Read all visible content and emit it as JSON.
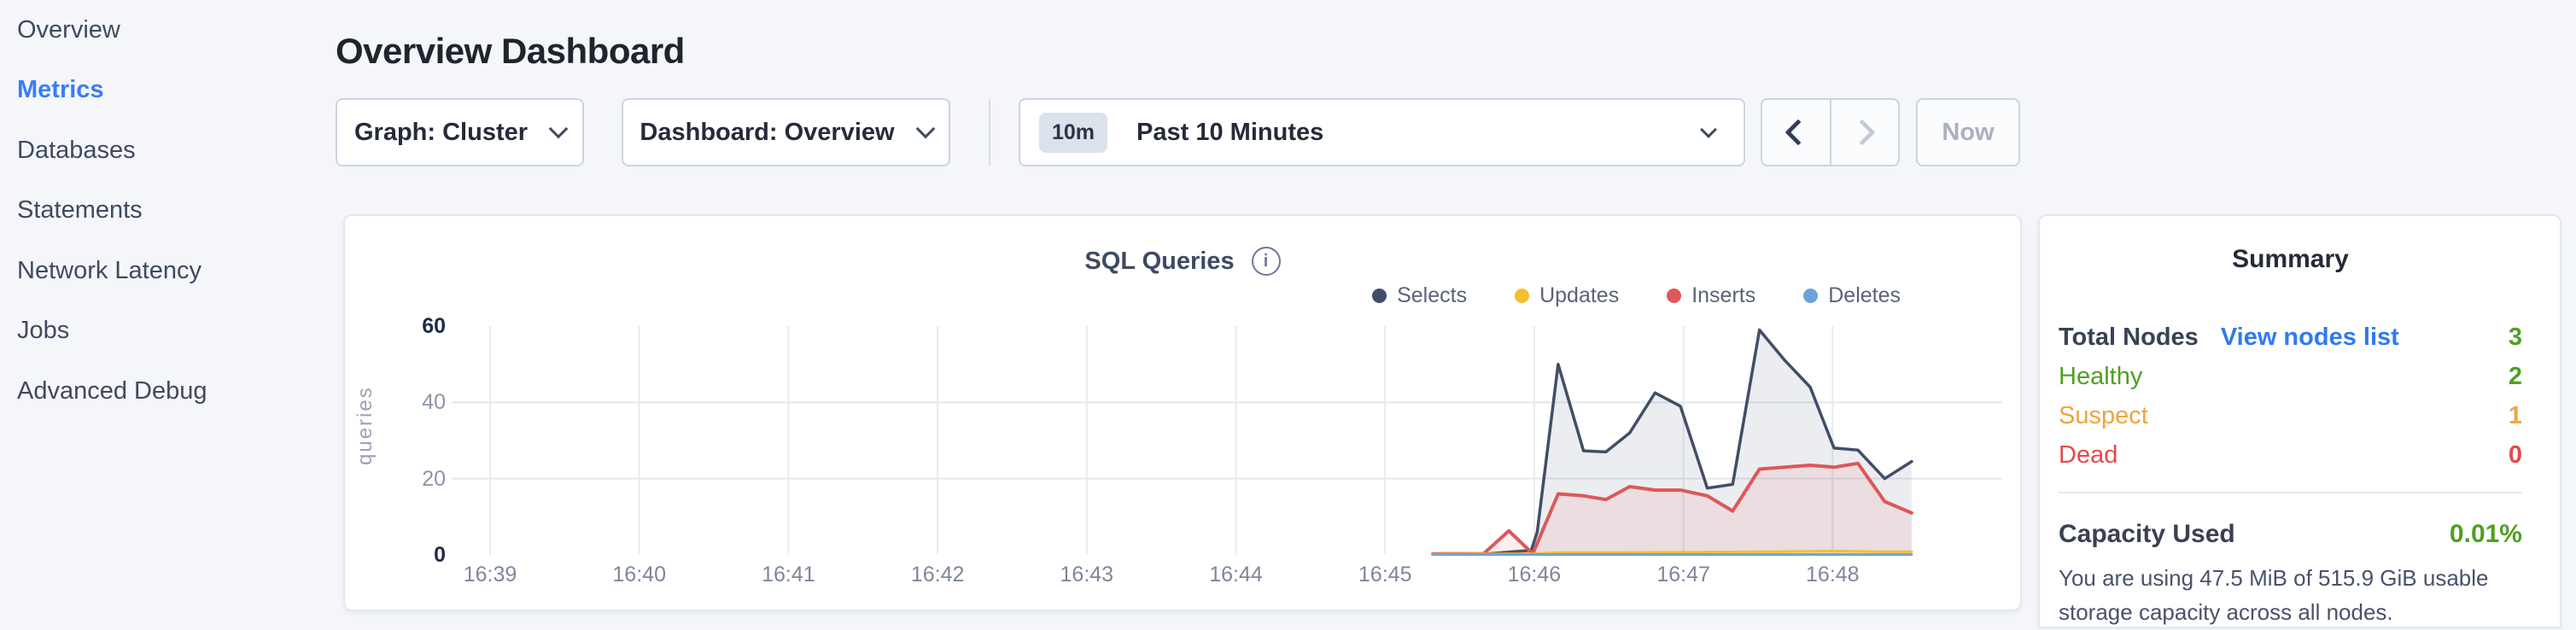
{
  "sidebar": {
    "items": [
      {
        "label": "Overview",
        "active": false
      },
      {
        "label": "Metrics",
        "active": true
      },
      {
        "label": "Databases",
        "active": false
      },
      {
        "label": "Statements",
        "active": false
      },
      {
        "label": "Network Latency",
        "active": false
      },
      {
        "label": "Jobs",
        "active": false
      },
      {
        "label": "Advanced Debug",
        "active": false
      }
    ],
    "active_color": "#3b7cf5"
  },
  "header": {
    "title": "Overview Dashboard"
  },
  "controls": {
    "graph_dropdown": {
      "label": "Graph: Cluster"
    },
    "dashboard_dropdown": {
      "label": "Dashboard: Overview"
    },
    "time_selector": {
      "badge": "10m",
      "label": "Past 10 Minutes"
    },
    "now_label": "Now"
  },
  "chart_data": {
    "type": "area",
    "title": "SQL Queries",
    "ylabel": "queries",
    "xlabel": "",
    "x_ticks": [
      "16:39",
      "16:40",
      "16:41",
      "16:42",
      "16:43",
      "16:44",
      "16:45",
      "16:46",
      "16:47",
      "16:48"
    ],
    "y_ticks": [
      0,
      20,
      40,
      60
    ],
    "ylim": [
      0,
      60
    ],
    "grid": "on",
    "legend_position": "top-right",
    "x_unit": "time (minutes after 16:00, decimal)",
    "draw_order": [
      0,
      2,
      1,
      3
    ],
    "series": [
      {
        "name": "Selects",
        "color": "#414e68",
        "fill": "rgba(65,78,104,0.10)",
        "stroke_width": 3.5,
        "points": [
          [
            45.32,
            0.3
          ],
          [
            45.5,
            0.3
          ],
          [
            45.69,
            0.3
          ],
          [
            45.98,
            1.2
          ],
          [
            46.02,
            6
          ],
          [
            46.16,
            50
          ],
          [
            46.33,
            27.3
          ],
          [
            46.48,
            27
          ],
          [
            46.64,
            32
          ],
          [
            46.81,
            42.5
          ],
          [
            46.98,
            39
          ],
          [
            47.16,
            17.5
          ],
          [
            47.33,
            18.5
          ],
          [
            47.51,
            59
          ],
          [
            47.68,
            51
          ],
          [
            47.85,
            44
          ],
          [
            48.01,
            28
          ],
          [
            48.17,
            27.5
          ],
          [
            48.35,
            20
          ],
          [
            48.53,
            24.5
          ]
        ]
      },
      {
        "name": "Updates",
        "color": "#f2c02e",
        "fill": "rgba(242,192,46,0.08)",
        "stroke_width": 3,
        "points": [
          [
            45.32,
            0.2
          ],
          [
            46.0,
            0.3
          ],
          [
            46.16,
            0.6
          ],
          [
            46.5,
            0.6
          ],
          [
            47.0,
            0.7
          ],
          [
            47.5,
            0.8
          ],
          [
            48.0,
            1.0
          ],
          [
            48.35,
            0.8
          ],
          [
            48.53,
            0.8
          ]
        ]
      },
      {
        "name": "Inserts",
        "color": "#dd5858",
        "fill": "rgba(221,88,88,0.10)",
        "stroke_width": 4,
        "points": [
          [
            45.32,
            0.3
          ],
          [
            45.66,
            0.3
          ],
          [
            45.83,
            6.3
          ],
          [
            45.99,
            0.3
          ],
          [
            46.16,
            16
          ],
          [
            46.33,
            15.5
          ],
          [
            46.48,
            14.5
          ],
          [
            46.64,
            17.9
          ],
          [
            46.81,
            17
          ],
          [
            46.98,
            17
          ],
          [
            47.16,
            15.5
          ],
          [
            47.33,
            11.5
          ],
          [
            47.51,
            22.5
          ],
          [
            47.68,
            23
          ],
          [
            47.85,
            23.5
          ],
          [
            48.01,
            23
          ],
          [
            48.17,
            24
          ],
          [
            48.35,
            14
          ],
          [
            48.53,
            11
          ]
        ]
      },
      {
        "name": "Deletes",
        "color": "#6ba3d6",
        "fill": "rgba(107,163,214,0.12)",
        "stroke_width": 3,
        "points": [
          [
            45.32,
            0.1
          ],
          [
            46.16,
            0.1
          ],
          [
            47.0,
            0.1
          ],
          [
            48.0,
            0.1
          ],
          [
            48.53,
            0.1
          ]
        ]
      }
    ]
  },
  "summary": {
    "title": "Summary",
    "rows": [
      {
        "label": "Total Nodes",
        "link": "View nodes list",
        "value": "3",
        "label_color": "#384252",
        "value_color": "#4fa022"
      },
      {
        "label": "Healthy",
        "value": "2",
        "label_color": "#4fa022",
        "value_color": "#4fa022"
      },
      {
        "label": "Suspect",
        "value": "1",
        "label_color": "#f2a33c",
        "value_color": "#f2a33c"
      },
      {
        "label": "Dead",
        "value": "0",
        "label_color": "#e5484d",
        "value_color": "#e5484d"
      }
    ],
    "capacity": {
      "label": "Capacity Used",
      "value": "0.01%",
      "value_color": "#4fa022",
      "description": "You are using 47.5 MiB of 515.9 GiB usable storage capacity across all nodes."
    }
  },
  "colors": {
    "page_bg": "#f4f6fa",
    "card_border": "#e4e7ed",
    "link_blue": "#2f7af0",
    "active_nav_blue": "#3b7cf5",
    "green": "#4fa022",
    "orange": "#f2a33c",
    "red": "#e5484d"
  }
}
